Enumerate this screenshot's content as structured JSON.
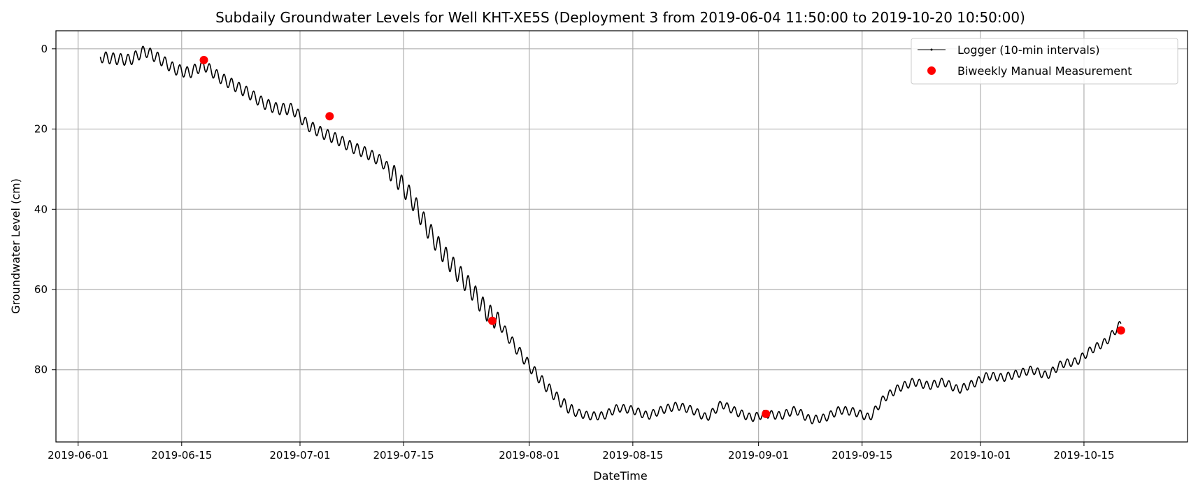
{
  "chart_data": {
    "type": "line",
    "title": "Subdaily Groundwater Levels for Well KHT-XE5S (Deployment 3 from 2019-06-04 11:50:00 to 2019-10-20 10:50:00)",
    "xlabel": "DateTime",
    "ylabel": "Groundwater Level (cm)",
    "x_range": [
      "2019-05-29",
      "2019-10-29"
    ],
    "ylim": [
      98,
      -4.5
    ],
    "y_inverted": true,
    "grid": true,
    "legend_position": "top-right",
    "x_ticks": [
      "2019-06-01",
      "2019-06-15",
      "2019-07-01",
      "2019-07-15",
      "2019-08-01",
      "2019-08-15",
      "2019-09-01",
      "2019-09-15",
      "2019-10-01",
      "2019-10-15"
    ],
    "y_ticks": [
      0,
      20,
      40,
      60,
      80
    ],
    "series": [
      {
        "name": "Logger (10-min intervals)",
        "kind": "line",
        "color": "#000000",
        "points": [
          [
            "2019-06-04",
            2.0
          ],
          [
            "2019-06-06",
            2.5
          ],
          [
            "2019-06-08",
            2.8
          ],
          [
            "2019-06-10",
            0.5
          ],
          [
            "2019-06-12",
            2.5
          ],
          [
            "2019-06-14",
            5.0
          ],
          [
            "2019-06-16",
            6.0
          ],
          [
            "2019-06-18",
            4.0
          ],
          [
            "2019-06-20",
            7.0
          ],
          [
            "2019-06-22",
            9.0
          ],
          [
            "2019-06-24",
            11.0
          ],
          [
            "2019-06-26",
            13.5
          ],
          [
            "2019-06-28",
            15.0
          ],
          [
            "2019-06-30",
            15.0
          ],
          [
            "2019-07-02",
            19.0
          ],
          [
            "2019-07-04",
            21.0
          ],
          [
            "2019-07-06",
            22.5
          ],
          [
            "2019-07-08",
            24.5
          ],
          [
            "2019-07-10",
            26.0
          ],
          [
            "2019-07-12",
            28.0
          ],
          [
            "2019-07-14",
            32.0
          ],
          [
            "2019-07-16",
            37.0
          ],
          [
            "2019-07-18",
            44.0
          ],
          [
            "2019-07-20",
            50.0
          ],
          [
            "2019-07-22",
            55.0
          ],
          [
            "2019-07-24",
            59.5
          ],
          [
            "2019-07-26",
            65.0
          ],
          [
            "2019-07-28",
            68.5
          ],
          [
            "2019-07-30",
            74.0
          ],
          [
            "2019-08-01",
            79.0
          ],
          [
            "2019-08-03",
            83.5
          ],
          [
            "2019-08-05",
            87.5
          ],
          [
            "2019-08-07",
            90.5
          ],
          [
            "2019-08-09",
            91.5
          ],
          [
            "2019-08-11",
            91.5
          ],
          [
            "2019-08-13",
            89.5
          ],
          [
            "2019-08-15",
            90.0
          ],
          [
            "2019-08-17",
            91.5
          ],
          [
            "2019-08-19",
            90.0
          ],
          [
            "2019-08-21",
            89.0
          ],
          [
            "2019-08-23",
            90.0
          ],
          [
            "2019-08-25",
            92.0
          ],
          [
            "2019-08-27",
            88.5
          ],
          [
            "2019-08-29",
            90.5
          ],
          [
            "2019-08-31",
            92.0
          ],
          [
            "2019-09-02",
            91.0
          ],
          [
            "2019-09-04",
            91.5
          ],
          [
            "2019-09-06",
            90.0
          ],
          [
            "2019-09-08",
            92.5
          ],
          [
            "2019-09-10",
            92.0
          ],
          [
            "2019-09-12",
            90.0
          ],
          [
            "2019-09-14",
            90.5
          ],
          [
            "2019-09-16",
            92.0
          ],
          [
            "2019-09-18",
            87.0
          ],
          [
            "2019-09-20",
            84.5
          ],
          [
            "2019-09-22",
            83.0
          ],
          [
            "2019-09-24",
            84.0
          ],
          [
            "2019-09-26",
            83.0
          ],
          [
            "2019-09-28",
            85.0
          ],
          [
            "2019-09-30",
            83.5
          ],
          [
            "2019-10-02",
            81.5
          ],
          [
            "2019-10-04",
            82.0
          ],
          [
            "2019-10-06",
            81.0
          ],
          [
            "2019-10-08",
            80.0
          ],
          [
            "2019-10-10",
            81.5
          ],
          [
            "2019-10-12",
            78.5
          ],
          [
            "2019-10-14",
            78.0
          ],
          [
            "2019-10-16",
            75.0
          ],
          [
            "2019-10-18",
            73.0
          ],
          [
            "2019-10-20",
            68.5
          ]
        ]
      },
      {
        "name": "Biweekly Manual Measurement",
        "kind": "scatter",
        "color": "#ff0000",
        "points": [
          [
            "2019-06-18",
            2.8
          ],
          [
            "2019-07-05",
            16.8
          ],
          [
            "2019-07-27",
            67.8
          ],
          [
            "2019-09-02",
            91.0
          ],
          [
            "2019-10-20",
            70.2
          ]
        ]
      }
    ]
  }
}
